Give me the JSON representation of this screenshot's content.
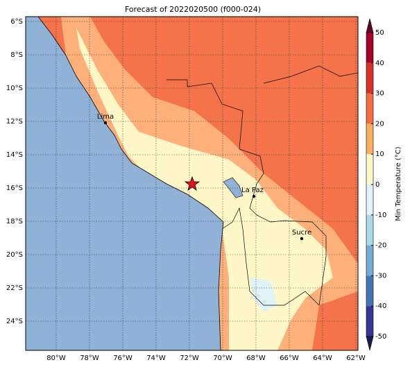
{
  "title": "Forecast of 2022020500 (f000-024)",
  "map": {
    "lat_labels": [
      "6°S",
      "8°S",
      "10°S",
      "12°S",
      "14°S",
      "16°S",
      "18°S",
      "20°S",
      "22°S",
      "24°S"
    ],
    "lon_labels": [
      "80°W",
      "78°W",
      "76°W",
      "74°W",
      "72°W",
      "70°W",
      "68°W",
      "66°W",
      "64°W",
      "62°W"
    ],
    "cities": [
      {
        "name": "Lima"
      },
      {
        "name": "La Paz"
      },
      {
        "name": "Sucre"
      }
    ]
  },
  "colorbar": {
    "label": "Min Temperature (°C)",
    "ticks": [
      50,
      40,
      30,
      20,
      10,
      0,
      -10,
      -20,
      -30,
      -40,
      -50
    ],
    "colors": [
      "#a50026",
      "#d73027",
      "#f46d43",
      "#fdae61",
      "#fff7c8",
      "#e0f3f8",
      "#abd9e9",
      "#74add1",
      "#4575b4",
      "#313695"
    ]
  }
}
